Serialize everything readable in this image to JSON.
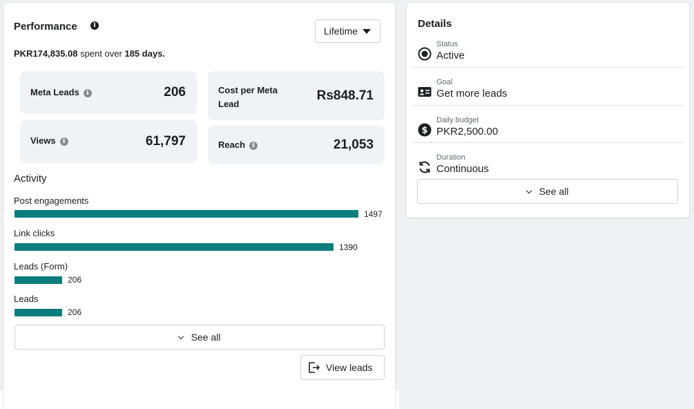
{
  "performance": {
    "title": "Performance",
    "period": "Lifetime",
    "spent_amount": "PKR174,835.08",
    "spent_text": "spent over",
    "spent_days": "185 days."
  },
  "metrics": [
    {
      "label": "Meta Leads",
      "value": "206"
    },
    {
      "label": "Cost per Meta Lead",
      "value": "Rs848.71"
    },
    {
      "label": "Views",
      "value": "61,797"
    },
    {
      "label": "Reach",
      "value": "21,053"
    }
  ],
  "activity": {
    "title": "Activity",
    "items": [
      {
        "label": "Post engagements",
        "value": "1497",
        "count": 1497
      },
      {
        "label": "Link clicks",
        "value": "1390",
        "count": 1390
      },
      {
        "label": "Leads (Form)",
        "value": "206",
        "count": 206
      },
      {
        "label": "Leads",
        "value": "206",
        "count": 206
      }
    ],
    "bar_color": "#0b7d7d",
    "see_all_label": "See all",
    "view_leads_label": "View leads"
  },
  "details": {
    "title": "Details",
    "rows": [
      {
        "label": "Status",
        "value": "Active",
        "icon": "radio-selected-icon"
      },
      {
        "label": "Goal",
        "value": "Get more leads",
        "icon": "id-card-icon"
      },
      {
        "label": "Daily budget",
        "value": "PKR2,500.00",
        "icon": "dollar-icon"
      },
      {
        "label": "Duration",
        "value": "Continuous",
        "icon": "refresh-icon"
      }
    ],
    "see_all_label": "See all"
  }
}
